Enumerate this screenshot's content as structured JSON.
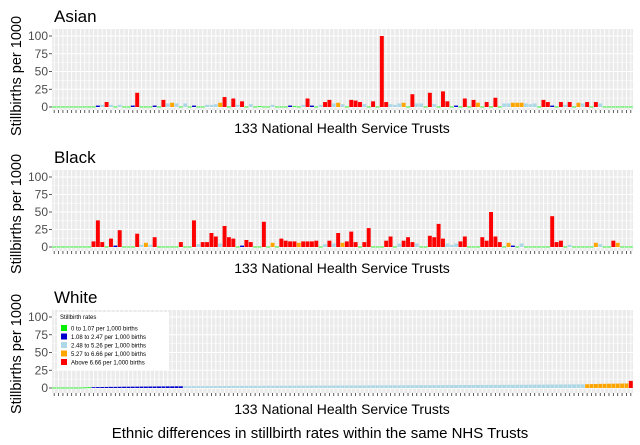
{
  "caption": "Ethnic differences in stillbirth rates within the same NHS Trusts",
  "colors": {
    "panel_bg": "#ebebeb",
    "grid": "#ffffff",
    "c1": "#00ee00",
    "c2": "#0000cc",
    "c3": "#add8e6",
    "c4": "#ffa500",
    "c5": "#ff0000"
  },
  "legend": {
    "title": "Stillbirth rates",
    "entries": [
      {
        "label": "0 to 1.07 per 1,000 births",
        "color": "#00ee00"
      },
      {
        "label": "1.08 to 2.47 per 1,000 births",
        "color": "#0000cc"
      },
      {
        "label": "2.48 to 5.26 per 1,000 births",
        "color": "#add8e6"
      },
      {
        "label": "5.27 to 6.66 per 1,000 births",
        "color": "#ffa500"
      },
      {
        "label": "Above 6.66 per 1,000 births",
        "color": "#ff0000"
      }
    ]
  },
  "chart_data": [
    {
      "type": "bar",
      "title": "Asian",
      "xlabel": "133 National Health Service Trusts",
      "ylabel": "Stillbirths per 1000",
      "ylim": [
        0,
        105
      ],
      "yticks": [
        0,
        25,
        50,
        75,
        100
      ],
      "n": 133,
      "values": [
        0,
        0,
        0,
        0,
        0,
        0,
        0,
        0,
        0,
        0,
        2,
        3,
        7,
        3,
        0,
        3,
        0,
        0,
        2,
        20,
        0,
        0,
        0,
        2,
        0,
        10,
        5,
        6,
        5,
        0,
        5,
        0,
        2,
        0,
        0,
        3,
        3,
        4,
        6,
        14,
        0,
        12,
        3,
        8,
        0,
        4,
        0,
        1,
        0,
        0,
        3,
        0,
        0,
        0,
        2,
        1,
        0,
        3,
        12,
        2,
        0,
        3,
        7,
        10,
        5,
        6,
        4,
        0,
        10,
        9,
        7,
        4,
        0,
        8,
        0,
        100,
        7,
        4,
        3,
        5,
        6,
        0,
        18,
        5,
        5,
        0,
        20,
        4,
        0,
        22,
        8,
        0,
        2,
        0,
        12,
        0,
        10,
        6,
        0,
        7,
        0,
        13,
        0,
        5,
        5,
        6,
        6,
        6,
        5,
        4,
        5,
        0,
        10,
        7,
        2,
        0,
        7,
        3,
        7,
        0,
        6,
        5,
        7,
        0,
        7,
        5,
        0,
        0,
        0,
        0,
        0,
        0,
        0
      ]
    },
    {
      "type": "bar",
      "title": "Black",
      "xlabel": "133 National Health Service Trusts",
      "ylabel": "Stillbirths per 1000",
      "ylim": [
        0,
        105
      ],
      "yticks": [
        0,
        25,
        50,
        75,
        100
      ],
      "n": 133,
      "values": [
        0,
        0,
        0,
        0,
        0,
        0,
        0,
        0,
        0,
        8,
        38,
        7,
        0,
        12,
        2,
        24,
        0,
        0,
        0,
        19,
        3,
        6,
        3,
        14,
        0,
        0,
        0,
        0,
        0,
        7,
        0,
        0,
        38,
        4,
        7,
        7,
        20,
        15,
        5,
        30,
        14,
        12,
        0,
        2,
        10,
        7,
        0,
        0,
        36,
        0,
        6,
        0,
        12,
        9,
        8,
        8,
        6,
        8,
        8,
        8,
        9,
        0,
        4,
        9,
        5,
        20,
        6,
        8,
        22,
        7,
        0,
        7,
        27,
        0,
        0,
        0,
        9,
        15,
        0,
        5,
        9,
        14,
        7,
        5,
        0,
        0,
        16,
        14,
        33,
        12,
        5,
        3,
        5,
        8,
        15,
        0,
        0,
        0,
        14,
        9,
        50,
        15,
        7,
        0,
        6,
        2,
        0,
        5,
        0,
        0,
        0,
        0,
        0,
        0,
        44,
        7,
        9,
        0,
        3,
        0,
        0,
        0,
        0,
        0,
        6,
        4,
        0,
        0,
        9,
        6,
        0,
        0,
        0
      ]
    },
    {
      "type": "bar",
      "title": "White",
      "xlabel": "133 National Health Service Trusts",
      "ylabel": "Stillbirths per 1000",
      "ylim": [
        0,
        105
      ],
      "yticks": [
        0,
        25,
        50,
        75,
        100
      ],
      "n": 133,
      "values": [
        0,
        0,
        0,
        0,
        0,
        0,
        0.5,
        0.8,
        1.0,
        1.2,
        1.3,
        1.4,
        1.5,
        1.6,
        1.6,
        1.7,
        1.8,
        1.8,
        1.9,
        1.9,
        2.0,
        2.0,
        2.1,
        2.1,
        2.2,
        2.2,
        2.3,
        2.3,
        2.4,
        2.4,
        2.5,
        2.5,
        2.6,
        2.6,
        2.6,
        2.7,
        2.7,
        2.7,
        2.8,
        2.8,
        2.8,
        2.9,
        2.9,
        2.9,
        3.0,
        3.0,
        3.0,
        3.0,
        3.1,
        3.1,
        3.1,
        3.1,
        3.2,
        3.2,
        3.2,
        3.2,
        3.3,
        3.3,
        3.3,
        3.3,
        3.4,
        3.4,
        3.4,
        3.4,
        3.5,
        3.5,
        3.5,
        3.5,
        3.6,
        3.6,
        3.6,
        3.6,
        3.7,
        3.7,
        3.7,
        3.7,
        3.8,
        3.8,
        3.8,
        3.8,
        3.9,
        3.9,
        3.9,
        3.9,
        4.0,
        4.0,
        4.0,
        4.0,
        4.1,
        4.1,
        4.1,
        4.1,
        4.2,
        4.2,
        4.2,
        4.2,
        4.3,
        4.3,
        4.3,
        4.3,
        4.4,
        4.4,
        4.4,
        4.5,
        4.5,
        4.5,
        4.6,
        4.6,
        4.6,
        4.7,
        4.7,
        4.8,
        4.8,
        4.8,
        4.9,
        4.9,
        5.0,
        5.0,
        5.1,
        5.1,
        5.2,
        5.2,
        5.3,
        5.5,
        5.6,
        5.8,
        5.9,
        6.0,
        6.1,
        6.2,
        6.3,
        6.4,
        10
      ]
    }
  ]
}
